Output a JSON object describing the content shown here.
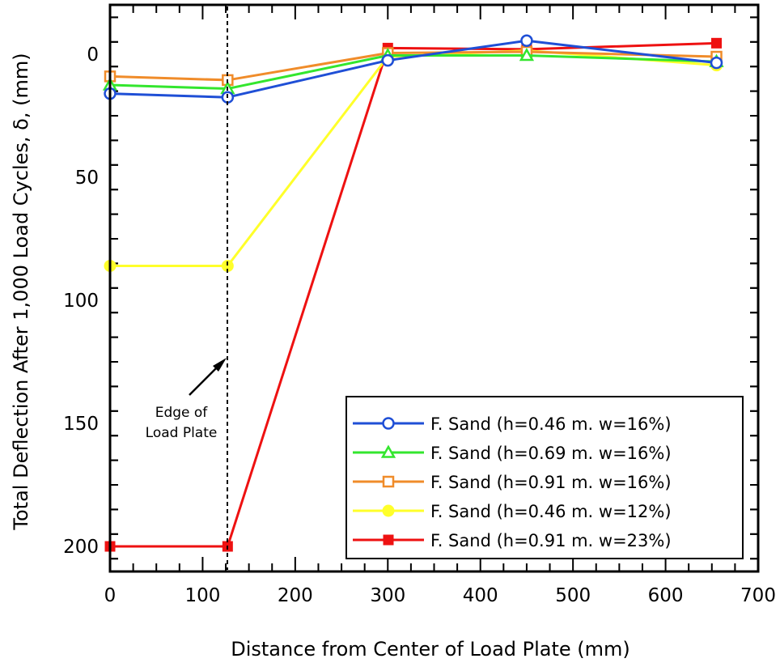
{
  "chart_data": {
    "type": "line",
    "xlabel": "Distance from Center of Load Plate (mm)",
    "ylabel": "Total Deflection After 1,000 Load Cycles, δ, (mm)",
    "xlim": [
      0,
      700
    ],
    "ylim": [
      210,
      -20
    ],
    "y_inverted": true,
    "xticks": [
      0,
      100,
      200,
      300,
      400,
      500,
      600,
      700
    ],
    "yticks": [
      0,
      50,
      100,
      150,
      200
    ],
    "grid": false,
    "legend_position": "bottom-right",
    "series": [
      {
        "name": "F. Sand (h=0.46 m. w=16%)",
        "color": "#1f4fd6",
        "marker": "circle-open",
        "x": [
          0,
          127,
          300,
          450,
          655
        ],
        "y": [
          16,
          17.5,
          2.5,
          -5.5,
          3.5
        ]
      },
      {
        "name": "F. Sand (h=0.69 m. w=16%)",
        "color": "#33e62e",
        "marker": "triangle-open",
        "x": [
          0,
          127,
          300,
          450,
          655
        ],
        "y": [
          12.5,
          14,
          0.5,
          0.5,
          3
        ]
      },
      {
        "name": "F. Sand (h=0.91 m. w=16%)",
        "color": "#f08c2a",
        "marker": "square-open",
        "x": [
          0,
          127,
          300,
          450,
          655
        ],
        "y": [
          9,
          10.5,
          -0.5,
          -1,
          1
        ]
      },
      {
        "name": "F. Sand (h=0.46 m. w=12%)",
        "color": "#ffff2a",
        "marker": "circle-filled",
        "x": [
          0,
          127,
          300,
          450,
          655
        ],
        "y": [
          86,
          86,
          1,
          -1.5,
          4.5
        ]
      },
      {
        "name": "F. Sand (h=0.91 m. w=23%)",
        "color": "#ee1111",
        "marker": "square-filled",
        "x": [
          0,
          127,
          300,
          450,
          655
        ],
        "y": [
          200,
          200,
          -2.5,
          -2,
          -4.5
        ]
      }
    ],
    "annotations": [
      {
        "lines": [
          "Edge of",
          "Load Plate"
        ],
        "x": 127,
        "style": "dashed vertical line with arrow"
      }
    ]
  }
}
